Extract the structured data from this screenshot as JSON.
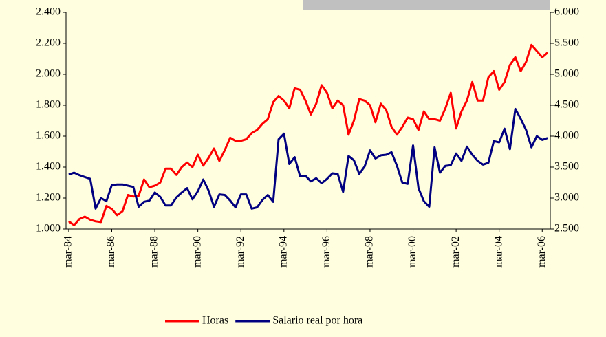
{
  "chart_data": {
    "type": "line",
    "categories": [
      "mar-84",
      null,
      null,
      null,
      null,
      null,
      null,
      null,
      "mar-86",
      null,
      null,
      null,
      null,
      null,
      null,
      null,
      "mar-88",
      null,
      null,
      null,
      null,
      null,
      null,
      null,
      "mar-90",
      null,
      null,
      null,
      null,
      null,
      null,
      null,
      "mar-92",
      null,
      null,
      null,
      null,
      null,
      null,
      null,
      "mar-94",
      null,
      null,
      null,
      null,
      null,
      null,
      null,
      "mar-96",
      null,
      null,
      null,
      null,
      null,
      null,
      null,
      "mar-98",
      null,
      null,
      null,
      null,
      null,
      null,
      null,
      "mar-00",
      null,
      null,
      null,
      null,
      null,
      null,
      null,
      "mar-02",
      null,
      null,
      null,
      null,
      null,
      null,
      null,
      "mar-04",
      null,
      null,
      null,
      null,
      null,
      null,
      null,
      "mar-06",
      null
    ],
    "series": [
      {
        "name": "Horas",
        "color": "#ff0000",
        "axis": "y",
        "values": [
          1050,
          1025,
          1065,
          1080,
          1060,
          1050,
          1045,
          1150,
          1130,
          1090,
          1115,
          1220,
          1210,
          1215,
          1320,
          1270,
          1280,
          1300,
          1390,
          1390,
          1350,
          1400,
          1430,
          1400,
          1480,
          1410,
          1460,
          1520,
          1440,
          1510,
          1590,
          1570,
          1570,
          1580,
          1620,
          1640,
          1680,
          1710,
          1820,
          1860,
          1830,
          1780,
          1910,
          1900,
          1830,
          1740,
          1810,
          1930,
          1880,
          1780,
          1830,
          1800,
          1610,
          1700,
          1840,
          1830,
          1800,
          1690,
          1810,
          1770,
          1660,
          1610,
          1660,
          1720,
          1710,
          1640,
          1760,
          1710,
          1710,
          1700,
          1780,
          1880,
          1650,
          1760,
          1830,
          1950,
          1830,
          1830,
          1980,
          2020,
          1900,
          1950,
          2060,
          2110,
          2020,
          2080,
          2190,
          2150,
          2110,
          2140
        ]
      },
      {
        "name": "Salario real por hora",
        "color": "#000080",
        "axis": "y2",
        "values": [
          3380,
          3410,
          3370,
          3340,
          3310,
          2830,
          3000,
          2950,
          3210,
          3220,
          3220,
          3200,
          3180,
          2860,
          2940,
          2960,
          3090,
          3020,
          2880,
          2880,
          3010,
          3090,
          3160,
          2980,
          3110,
          3300,
          3120,
          2860,
          3060,
          3050,
          2960,
          2850,
          3060,
          3060,
          2830,
          2850,
          2970,
          3050,
          2940,
          3950,
          4040,
          3550,
          3660,
          3350,
          3360,
          3270,
          3320,
          3240,
          3310,
          3400,
          3390,
          3100,
          3680,
          3610,
          3390,
          3510,
          3770,
          3640,
          3690,
          3700,
          3740,
          3520,
          3250,
          3230,
          3850,
          3160,
          2950,
          2860,
          3820,
          3410,
          3520,
          3530,
          3720,
          3600,
          3830,
          3700,
          3600,
          3540,
          3570,
          3920,
          3900,
          4120,
          3790,
          4440,
          4280,
          4100,
          3820,
          4000,
          3940,
          3970
        ]
      }
    ],
    "ylim": [
      1000,
      2400
    ],
    "yticks": [
      {
        "value": 1000,
        "label": "1.000"
      },
      {
        "value": 1200,
        "label": "1.200"
      },
      {
        "value": 1400,
        "label": "1.400"
      },
      {
        "value": 1600,
        "label": "1.600"
      },
      {
        "value": 1800,
        "label": "1.800"
      },
      {
        "value": 2000,
        "label": "2.000"
      },
      {
        "value": 2200,
        "label": "2.200"
      },
      {
        "value": 2400,
        "label": "2.400"
      }
    ],
    "y2lim": [
      2500,
      6000
    ],
    "y2ticks": [
      {
        "value": 2500,
        "label": "2.500"
      },
      {
        "value": 3000,
        "label": "3.000"
      },
      {
        "value": 3500,
        "label": "3.500"
      },
      {
        "value": 4000,
        "label": "4.000"
      },
      {
        "value": 4500,
        "label": "4.500"
      },
      {
        "value": 5000,
        "label": "5.000"
      },
      {
        "value": 5500,
        "label": "5.500"
      },
      {
        "value": 6000,
        "label": "6.000"
      }
    ],
    "legend": "bottom"
  }
}
